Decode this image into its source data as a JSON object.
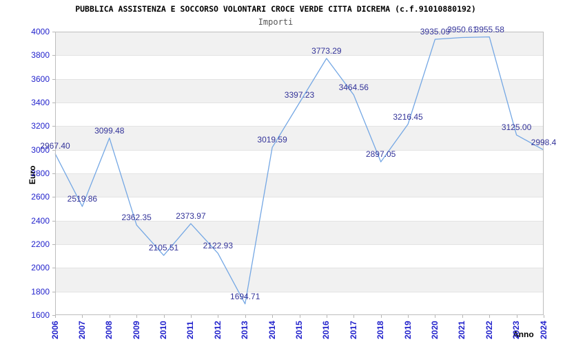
{
  "chart_data": {
    "type": "line",
    "title": "PUBBLICA ASSISTENZA E SOCCORSO VOLONTARI CROCE VERDE CITTA DICREMA (c.f.91010880192)",
    "subtitle": "Importi",
    "xlabel": "Anno",
    "ylabel": "Euro",
    "categories": [
      "2006",
      "2007",
      "2008",
      "2009",
      "2010",
      "2011",
      "2012",
      "2013",
      "2014",
      "2015",
      "2016",
      "2017",
      "2018",
      "2019",
      "2020",
      "2021",
      "2022",
      "2023",
      "2024"
    ],
    "values": [
      2967.4,
      2519.86,
      3099.48,
      2362.35,
      2105.51,
      2373.97,
      2122.93,
      1694.71,
      3019.59,
      3397.23,
      3773.29,
      3464.56,
      2897.05,
      3216.45,
      3935.09,
      3950.61,
      3955.58,
      3125.0,
      2998.4
    ],
    "point_labels": [
      "2967.40",
      "2519.86",
      "3099.48",
      "2362.35",
      "2105.51",
      "2373.97",
      "2122.93",
      "1694.71",
      "3019.59",
      "3397.23",
      "3773.29",
      "3464.56",
      "2897.05",
      "3216.45",
      "3935.09",
      "3950.61",
      "3955.58",
      "3125.00",
      "2998.4"
    ],
    "ylim": [
      1600,
      4000
    ],
    "ytick_step": 200,
    "grid": true,
    "legend": false,
    "colors": {
      "line": "#74a7e4",
      "point_label": "#333399",
      "tick_label": "#2222cc",
      "band": "#f1f1f1",
      "grid_line": "#e3e3e3",
      "plot_border": "#bdbdbd",
      "tick_mark": "#b5b5b5",
      "title": "#000000",
      "subtitle": "#555555",
      "axis_title": "#000000"
    }
  }
}
